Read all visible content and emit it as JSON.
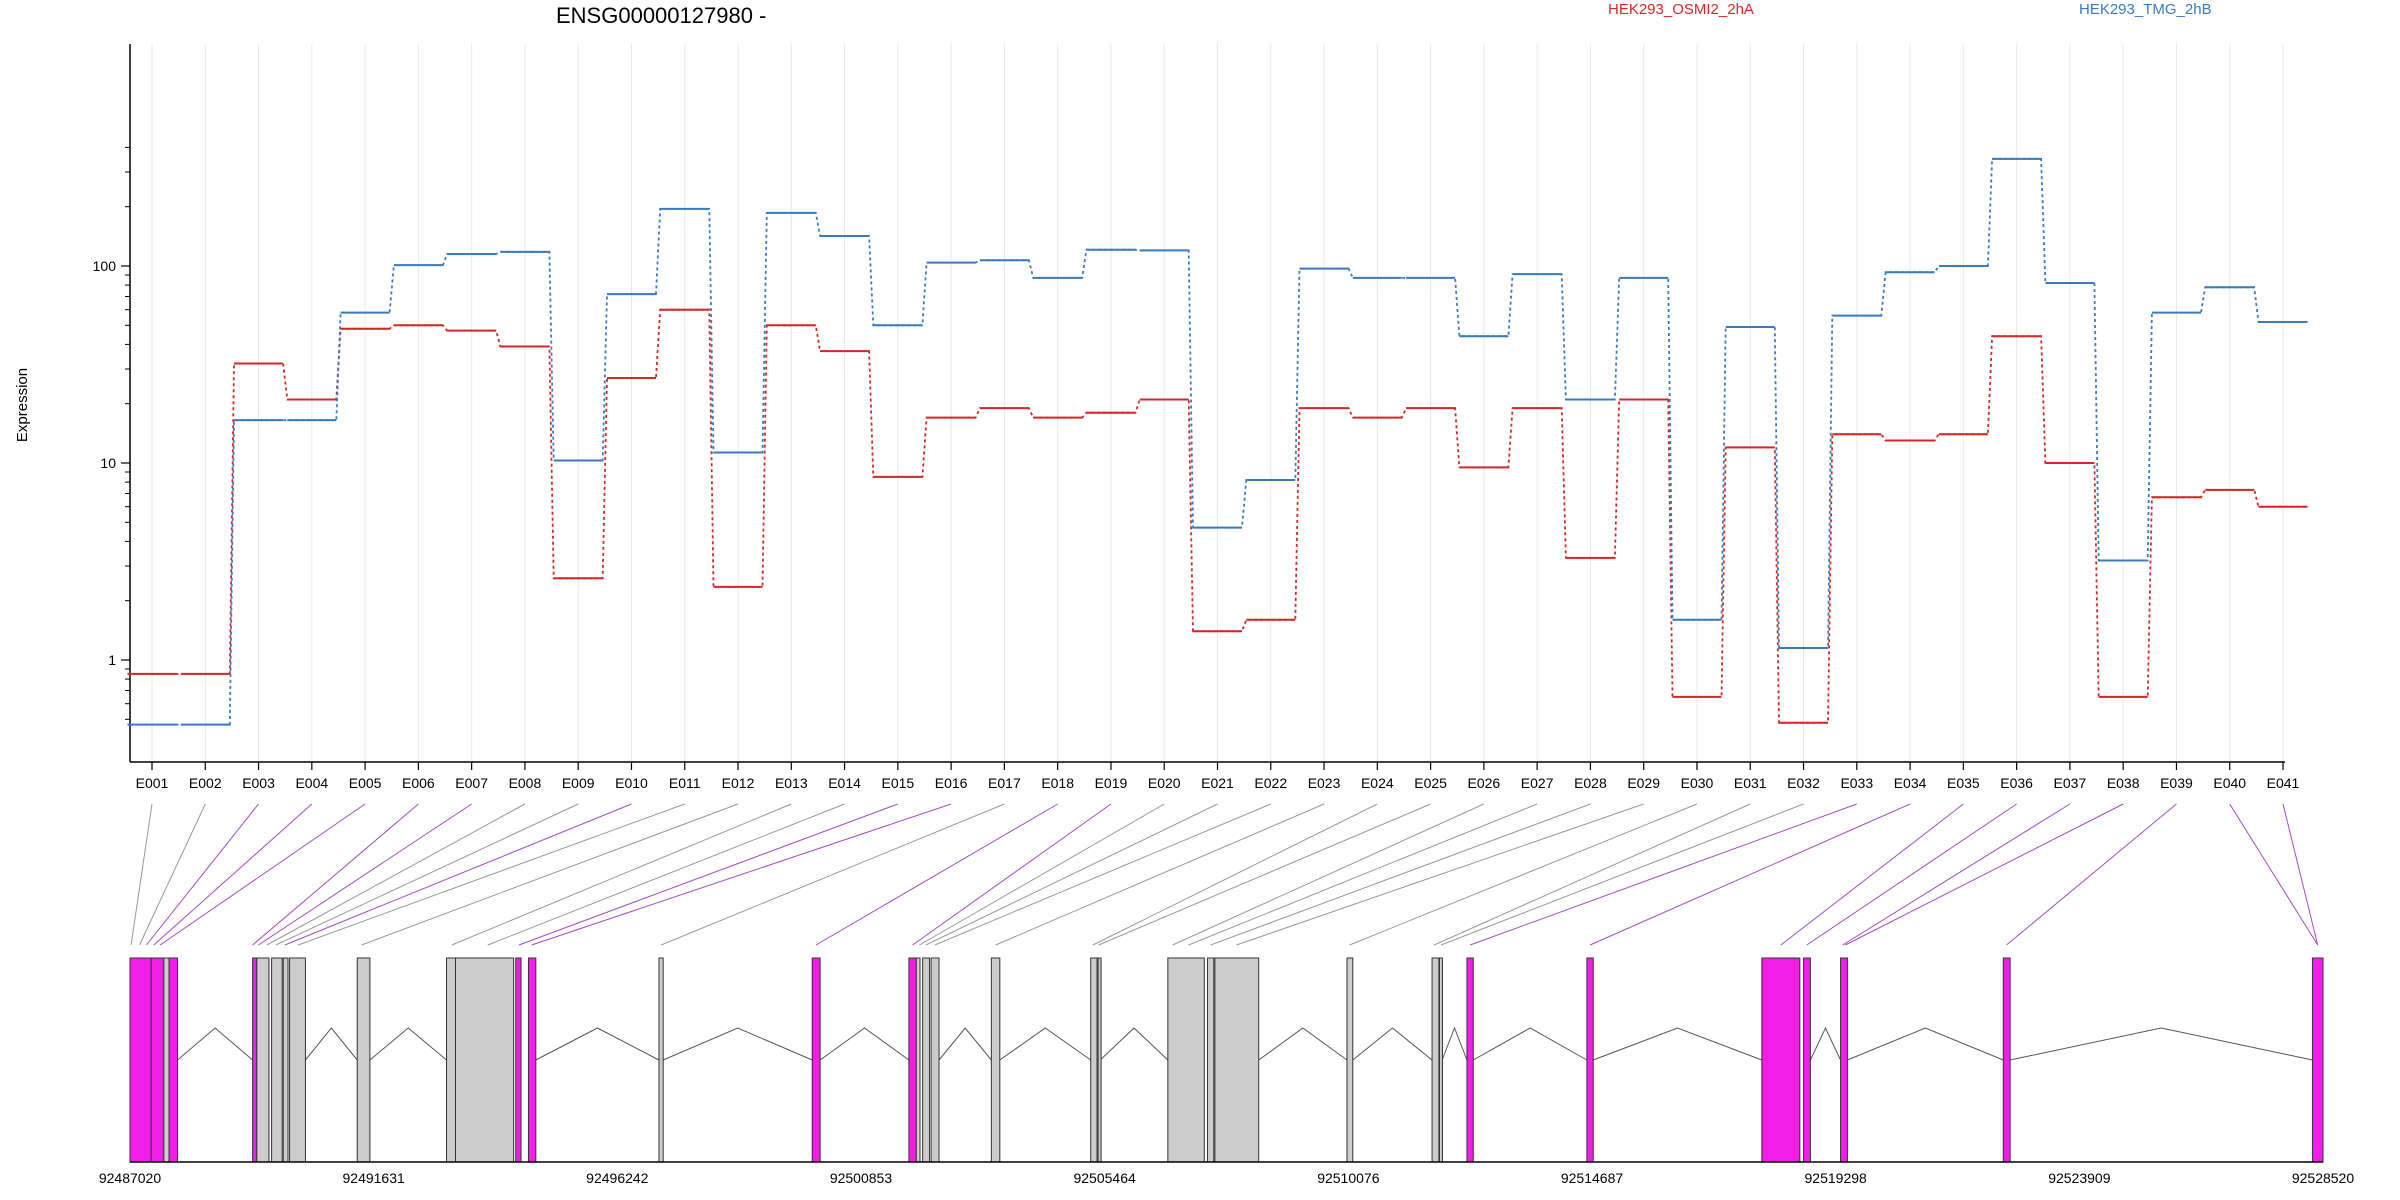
{
  "chart_data": {
    "type": "line",
    "title": "ENSG00000127980 -",
    "ylabel": "Expression",
    "yscale": "log",
    "ylim": [
      0.48,
      40
    ],
    "yticks": [
      1,
      10,
      100
    ],
    "ytick_labels": [
      "1",
      "10",
      "100"
    ],
    "legend_placement": "top",
    "categories": [
      "E001",
      "E002",
      "E003",
      "E004",
      "E005",
      "E006",
      "E007",
      "E008",
      "E009",
      "E010",
      "E011",
      "E012",
      "E013",
      "E014",
      "E015",
      "E016",
      "E017",
      "E018",
      "E019",
      "E020",
      "E021",
      "E022",
      "E023",
      "E024",
      "E025",
      "E026",
      "E027",
      "E028",
      "E029",
      "E030",
      "E031",
      "E032",
      "E033",
      "E034",
      "E035",
      "E036",
      "E037",
      "E038",
      "E039",
      "E040",
      "E041"
    ],
    "series": [
      {
        "name": "HEK293_OSMI2_2hA",
        "color": "#d62728",
        "values": [
          0.85,
          0.85,
          32,
          21,
          48,
          50,
          47,
          39,
          2.6,
          27,
          60,
          2.35,
          50,
          37,
          8.5,
          17,
          19,
          17,
          18,
          21,
          1.4,
          1.6,
          19,
          17,
          19,
          9.5,
          19,
          3.3,
          21,
          0.65,
          12,
          0.48,
          14,
          13,
          14,
          44,
          10,
          0.65,
          6.7,
          7.3,
          6
        ]
      },
      {
        "name": "HEK293_TMG_2hB",
        "color": "#3a7bbf",
        "values": [
          0.47,
          0.47,
          16.5,
          16.5,
          58,
          101,
          115,
          118,
          10.3,
          72,
          195,
          11.3,
          186,
          142,
          50,
          104,
          107,
          87,
          121,
          120,
          4.7,
          8.2,
          97,
          87,
          87,
          44,
          91,
          21,
          87,
          1.6,
          49,
          1.15,
          56,
          93,
          100,
          350,
          82,
          3.2,
          58,
          78,
          52
        ]
      }
    ],
    "genome_coordinates": [
      "92487020",
      "92491631",
      "92496242",
      "92500853",
      "92505464",
      "92510076",
      "92514687",
      "92519298",
      "92523909",
      "92528520"
    ],
    "genome_range": [
      92487020,
      92528520
    ],
    "exons": [
      {
        "start": 92487020,
        "end": 92487420,
        "type": "highlight"
      },
      {
        "start": 92487420,
        "end": 92487660,
        "type": "highlight"
      },
      {
        "start": 92487660,
        "end": 92487760,
        "type": "normal"
      },
      {
        "start": 92487760,
        "end": 92487920,
        "type": "highlight"
      },
      {
        "start": 92489340,
        "end": 92489420,
        "type": "highlight"
      },
      {
        "start": 92489420,
        "end": 92489650,
        "type": "normal"
      },
      {
        "start": 92489700,
        "end": 92489900,
        "type": "normal"
      },
      {
        "start": 92489920,
        "end": 92490010,
        "type": "normal"
      },
      {
        "start": 92490040,
        "end": 92490340,
        "type": "normal"
      },
      {
        "start": 92491320,
        "end": 92491560,
        "type": "normal"
      },
      {
        "start": 92493010,
        "end": 92493180,
        "type": "normal"
      },
      {
        "start": 92493180,
        "end": 92494280,
        "type": "normal"
      },
      {
        "start": 92494320,
        "end": 92494420,
        "type": "highlight"
      },
      {
        "start": 92494560,
        "end": 92494700,
        "type": "highlight"
      },
      {
        "start": 92497030,
        "end": 92497110,
        "type": "normal"
      },
      {
        "start": 92499930,
        "end": 92500080,
        "type": "highlight"
      },
      {
        "start": 92501760,
        "end": 92501900,
        "type": "highlight"
      },
      {
        "start": 92501900,
        "end": 92501970,
        "type": "normal"
      },
      {
        "start": 92502020,
        "end": 92502150,
        "type": "normal"
      },
      {
        "start": 92502180,
        "end": 92502330,
        "type": "normal"
      },
      {
        "start": 92503320,
        "end": 92503480,
        "type": "normal"
      },
      {
        "start": 92505200,
        "end": 92505320,
        "type": "normal"
      },
      {
        "start": 92505340,
        "end": 92505380,
        "type": "normal"
      },
      {
        "start": 92506660,
        "end": 92507350,
        "type": "normal"
      },
      {
        "start": 92507410,
        "end": 92507530,
        "type": "normal"
      },
      {
        "start": 92507550,
        "end": 92508380,
        "type": "normal"
      },
      {
        "start": 92510050,
        "end": 92510160,
        "type": "normal"
      },
      {
        "start": 92511660,
        "end": 92511790,
        "type": "normal"
      },
      {
        "start": 92511800,
        "end": 92511850,
        "type": "normal"
      },
      {
        "start": 92512320,
        "end": 92512440,
        "type": "highlight"
      },
      {
        "start": 92514590,
        "end": 92514710,
        "type": "highlight"
      },
      {
        "start": 92517900,
        "end": 92518620,
        "type": "highlight"
      },
      {
        "start": 92518690,
        "end": 92518820,
        "type": "highlight"
      },
      {
        "start": 92519390,
        "end": 92519520,
        "type": "highlight"
      },
      {
        "start": 92522470,
        "end": 92522600,
        "type": "highlight"
      },
      {
        "start": 92528320,
        "end": 92528520,
        "type": "highlight"
      }
    ],
    "introns": [
      [
        92487920,
        92489340
      ],
      [
        92490340,
        92491320
      ],
      [
        92491560,
        92493010
      ],
      [
        92494700,
        92497030
      ],
      [
        92497110,
        92499930
      ],
      [
        92500080,
        92501760
      ],
      [
        92502330,
        92503320
      ],
      [
        92503480,
        92505200
      ],
      [
        92505380,
        92506660
      ],
      [
        92508380,
        92510050
      ],
      [
        92510160,
        92511660
      ],
      [
        92511850,
        92512320
      ],
      [
        92512440,
        92514590
      ],
      [
        92514710,
        92517900
      ],
      [
        92518820,
        92519390
      ],
      [
        92519520,
        92522470
      ],
      [
        92522600,
        92528320
      ]
    ],
    "connectors": [
      {
        "exon_index": 0,
        "type": "normal",
        "pos": 92487040
      },
      {
        "exon_index": 1,
        "type": "normal",
        "pos": 92487200
      },
      {
        "exon_index": 2,
        "type": "highlight",
        "pos": 92487330
      },
      {
        "exon_index": 3,
        "type": "highlight",
        "pos": 92487470
      },
      {
        "exon_index": 4,
        "type": "highlight",
        "pos": 92487590
      },
      {
        "exon_index": 5,
        "type": "highlight",
        "pos": 92489340
      },
      {
        "exon_index": 6,
        "type": "highlight",
        "pos": 92489450
      },
      {
        "exon_index": 7,
        "type": "normal",
        "pos": 92489610
      },
      {
        "exon_index": 8,
        "type": "normal",
        "pos": 92489780
      },
      {
        "exon_index": 9,
        "type": "highlight",
        "pos": 92489950
      },
      {
        "exon_index": 10,
        "type": "normal",
        "pos": 92490200
      },
      {
        "exon_index": 11,
        "type": "normal",
        "pos": 92491400
      },
      {
        "exon_index": 12,
        "type": "normal",
        "pos": 92493110
      },
      {
        "exon_index": 13,
        "type": "normal",
        "pos": 92493790
      },
      {
        "exon_index": 14,
        "type": "highlight",
        "pos": 92494380
      },
      {
        "exon_index": 15,
        "type": "highlight",
        "pos": 92494620
      },
      {
        "exon_index": 16,
        "type": "normal",
        "pos": 92497070
      },
      {
        "exon_index": 17,
        "type": "highlight",
        "pos": 92500000
      },
      {
        "exon_index": 18,
        "type": "highlight",
        "pos": 92501830
      },
      {
        "exon_index": 19,
        "type": "normal",
        "pos": 92501960
      },
      {
        "exon_index": 20,
        "type": "normal",
        "pos": 92502080
      },
      {
        "exon_index": 21,
        "type": "normal",
        "pos": 92502250
      },
      {
        "exon_index": 22,
        "type": "normal",
        "pos": 92503400
      },
      {
        "exon_index": 23,
        "type": "normal",
        "pos": 92505240
      },
      {
        "exon_index": 24,
        "type": "normal",
        "pos": 92505350
      },
      {
        "exon_index": 25,
        "type": "normal",
        "pos": 92506750
      },
      {
        "exon_index": 26,
        "type": "normal",
        "pos": 92507050
      },
      {
        "exon_index": 27,
        "type": "normal",
        "pos": 92507470
      },
      {
        "exon_index": 28,
        "type": "normal",
        "pos": 92507960
      },
      {
        "exon_index": 29,
        "type": "normal",
        "pos": 92510100
      },
      {
        "exon_index": 30,
        "type": "normal",
        "pos": 92511700
      },
      {
        "exon_index": 31,
        "type": "normal",
        "pos": 92511830
      },
      {
        "exon_index": 32,
        "type": "highlight",
        "pos": 92512380
      },
      {
        "exon_index": 33,
        "type": "highlight",
        "pos": 92514650
      },
      {
        "exon_index": 34,
        "type": "highlight",
        "pos": 92518260
      },
      {
        "exon_index": 35,
        "type": "highlight",
        "pos": 92518750
      },
      {
        "exon_index": 36,
        "type": "highlight",
        "pos": 92519430
      },
      {
        "exon_index": 37,
        "type": "highlight",
        "pos": 92519480
      },
      {
        "exon_index": 38,
        "type": "highlight",
        "pos": 92522530
      },
      {
        "exon_index": 39,
        "type": "highlight",
        "pos": 92528420
      }
    ],
    "colors": {
      "highlight_exon": "#f01ee6",
      "normal_exon": "#cccccc",
      "highlight_connector": "#a74ac7",
      "normal_connector": "#999999",
      "gridline": "#e8e8e8"
    }
  }
}
